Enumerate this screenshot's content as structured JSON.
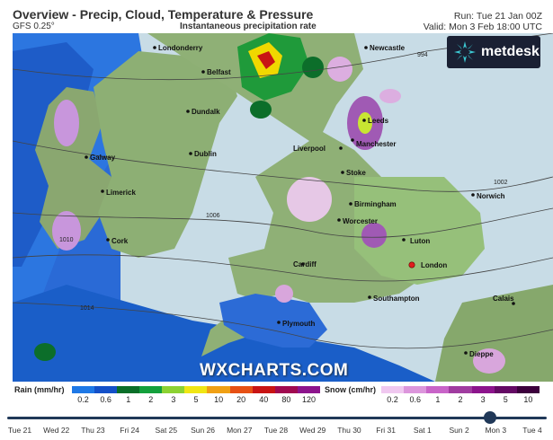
{
  "header": {
    "title": "Overview - Precip, Cloud, Temperature & Pressure",
    "model": "GFS 0.25°",
    "subtitle": "Instantaneous precipitation rate",
    "run": "Run: Tue 21 Jan 00Z",
    "valid": "Valid: Mon 3 Feb 18:00 UTC"
  },
  "logos": {
    "metdesk": "metdesk",
    "wxcharts": "WXCHARTS.COM"
  },
  "cities": [
    "Londonderry",
    "Belfast",
    "Newcastle",
    "Dundalk",
    "Leeds",
    "Manchester",
    "Galway",
    "Dublin",
    "Liverpool",
    "Stoke",
    "Limerick",
    "Birmingham",
    "Norwich",
    "Cork",
    "Worcester",
    "Luton",
    "Cardiff",
    "London",
    "Southampton",
    "Plymouth",
    "Calais",
    "Dieppe"
  ],
  "isobars": [
    "994",
    "1002",
    "1006",
    "1010",
    "1014"
  ],
  "legend": {
    "rain_label": "Rain (mm/hr)",
    "rain_ticks": [
      "0.2",
      "0.6",
      "1",
      "2",
      "3",
      "5",
      "10",
      "20",
      "40",
      "80",
      "120"
    ],
    "rain_colors": [
      "#1e78e6",
      "#1450c8",
      "#0a6e28",
      "#14a03c",
      "#8cd232",
      "#f0e614",
      "#f0a014",
      "#e65014",
      "#c81414",
      "#a00a50",
      "#8c148c"
    ],
    "snow_label": "Snow (cm/hr)",
    "snow_ticks": [
      "0.2",
      "0.6",
      "1",
      "2",
      "3",
      "5",
      "10"
    ],
    "snow_colors": [
      "#f0c8f0",
      "#dc96dc",
      "#c864c8",
      "#a03ca0",
      "#8c148c",
      "#640a64",
      "#3c003c"
    ]
  },
  "timeline": {
    "days": [
      "Tue 21",
      "Wed 22",
      "Thu 23",
      "Fri 24",
      "Sat 25",
      "Sun 26",
      "Mon 27",
      "Tue 28",
      "Wed 29",
      "Thu 30",
      "Fri 31",
      "Sat 1",
      "Sun 2",
      "Mon 3",
      "Tue 4"
    ],
    "current": "Mon 3"
  }
}
